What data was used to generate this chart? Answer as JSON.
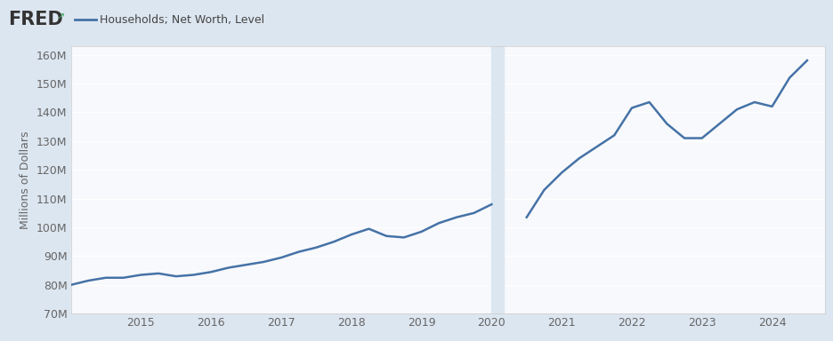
{
  "title": "Households; Net Worth, Level",
  "ylabel": "Millions of Dollars",
  "line_color": "#4572a7",
  "background_color": "#dce6f0",
  "plot_background": "#f8f9fc",
  "shade_color": "#dce6f0",
  "shade_start": 2020.0,
  "shade_end": 2020.17,
  "ylim": [
    70000,
    163000
  ],
  "yticks": [
    70000,
    80000,
    90000,
    100000,
    110000,
    120000,
    130000,
    140000,
    150000,
    160000
  ],
  "ytick_labels": [
    "70M",
    "80M",
    "90M",
    "100M",
    "110M",
    "120M",
    "130M",
    "140M",
    "150M",
    "160M"
  ],
  "data": {
    "dates": [
      2014.0,
      2014.25,
      2014.5,
      2014.75,
      2015.0,
      2015.25,
      2015.5,
      2015.75,
      2016.0,
      2016.25,
      2016.5,
      2016.75,
      2017.0,
      2017.25,
      2017.5,
      2017.75,
      2018.0,
      2018.25,
      2018.5,
      2018.75,
      2019.0,
      2019.25,
      2019.5,
      2019.75,
      2020.0,
      2020.5,
      2020.75,
      2021.0,
      2021.25,
      2021.5,
      2021.75,
      2022.0,
      2022.25,
      2022.5,
      2022.75,
      2023.0,
      2023.25,
      2023.5,
      2023.75,
      2024.0,
      2024.25,
      2024.5
    ],
    "values": [
      80000,
      81500,
      82500,
      82500,
      83500,
      84000,
      83000,
      83500,
      84500,
      86000,
      87000,
      88000,
      89500,
      91500,
      93000,
      95000,
      97500,
      99500,
      97000,
      96500,
      98500,
      101500,
      103500,
      105000,
      108000,
      103500,
      113000,
      119000,
      124000,
      128000,
      132000,
      141500,
      143500,
      136000,
      131000,
      131000,
      136000,
      141000,
      143500,
      142000,
      152000,
      158000
    ]
  },
  "grid_color": "#ffffff",
  "tick_color": "#666666",
  "spine_color": "#cccccc",
  "line_width": 1.8,
  "xticks": [
    2015,
    2016,
    2017,
    2018,
    2019,
    2020,
    2021,
    2022,
    2023,
    2024
  ],
  "xlim": [
    2014.0,
    2024.75
  ]
}
